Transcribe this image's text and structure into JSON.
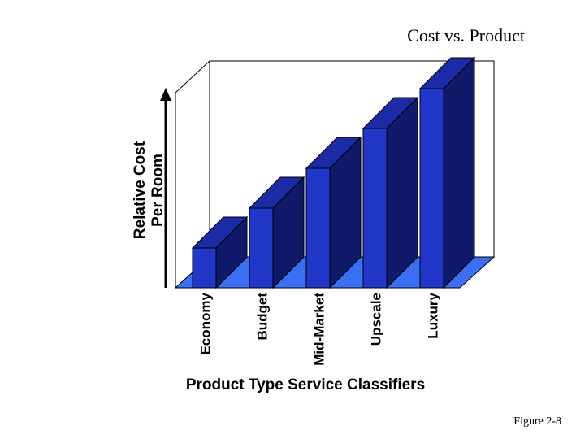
{
  "slide": {
    "title": "Cost vs. Product",
    "figure_label": "Figure 2-8"
  },
  "chart_data": {
    "type": "bar",
    "title": "Cost vs. Product",
    "xlabel": "Product Type Service Classifiers",
    "ylabel_lines": [
      "Relative Cost",
      "Per Room"
    ],
    "categories": [
      "Economy",
      "Budget",
      "Mid-Market",
      "Upscale",
      "Luxury"
    ],
    "values": [
      1,
      2,
      3,
      4,
      5
    ],
    "ylim": [
      0,
      5.5
    ],
    "three_d": true,
    "grid": false,
    "legend": "none",
    "colors": {
      "bar_front": "#2137c9",
      "bar_side": "#0f1a6b",
      "bar_top": "#1c2aa6",
      "floor": "#3a6ef5",
      "outline": "#000000"
    }
  }
}
